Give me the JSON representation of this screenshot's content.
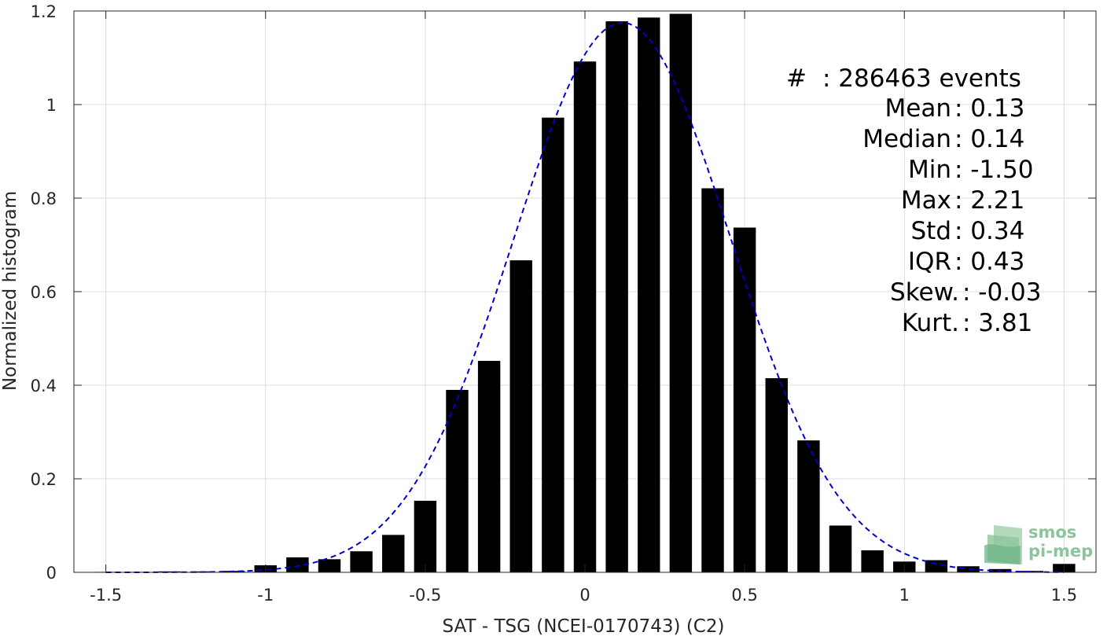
{
  "chart_data": {
    "type": "bar",
    "xlabel": "SAT - TSG (NCEI-0170743) (C2)",
    "ylabel": "Normalized histogram",
    "xlim": [
      -1.5,
      1.5
    ],
    "ylim": [
      0,
      1.2
    ],
    "xticks": [
      "-1.5",
      "-1",
      "-0.5",
      "0",
      "0.5",
      "1",
      "1.5"
    ],
    "yticks": [
      "0",
      "0.2",
      "0.4",
      "0.6",
      "0.8",
      "1",
      "1.2"
    ],
    "grid": true,
    "bar_width": 0.07,
    "bars": {
      "x": [
        -1.5,
        -1.4,
        -1.3,
        -1.2,
        -1.1,
        -1.0,
        -0.9,
        -0.8,
        -0.7,
        -0.6,
        -0.5,
        -0.4,
        -0.3,
        -0.2,
        -0.1,
        0.0,
        0.1,
        0.2,
        0.3,
        0.4,
        0.5,
        0.6,
        0.7,
        0.8,
        0.9,
        1.0,
        1.1,
        1.2,
        1.3,
        1.4,
        1.5
      ],
      "values": [
        0.001,
        0.001,
        0.002,
        0.002,
        0.003,
        0.015,
        0.032,
        0.028,
        0.045,
        0.08,
        0.153,
        0.39,
        0.452,
        0.667,
        0.972,
        1.092,
        1.178,
        1.186,
        1.194,
        0.821,
        0.737,
        0.415,
        0.282,
        0.1,
        0.047,
        0.023,
        0.026,
        0.013,
        0.007,
        0.003,
        0.018
      ],
      "color": "#000000"
    },
    "fit": {
      "name": "Gaussian fit",
      "color": "#0000cc",
      "style": "dashed",
      "mean": 0.117,
      "sigma": 0.34,
      "peak": 1.175
    },
    "annotations": [
      {
        "label": "#",
        "value": ": 286463 events"
      },
      {
        "label": "Mean",
        "value": ": 0.13"
      },
      {
        "label": "Median",
        "value": ": 0.14"
      },
      {
        "label": "Min",
        "value": ": -1.50"
      },
      {
        "label": "Max",
        "value": ": 2.21"
      },
      {
        "label": "Std",
        "value": ": 0.34"
      },
      {
        "label": "IQR",
        "value": ": 0.43"
      },
      {
        "label": "Skew.",
        "value": ": -0.03"
      },
      {
        "label": "Kurt.",
        "value": ": 3.81"
      }
    ]
  },
  "logo": {
    "line1": "smos",
    "line2": "pi-mep",
    "icon": "smos-pimep-logo-icon"
  }
}
